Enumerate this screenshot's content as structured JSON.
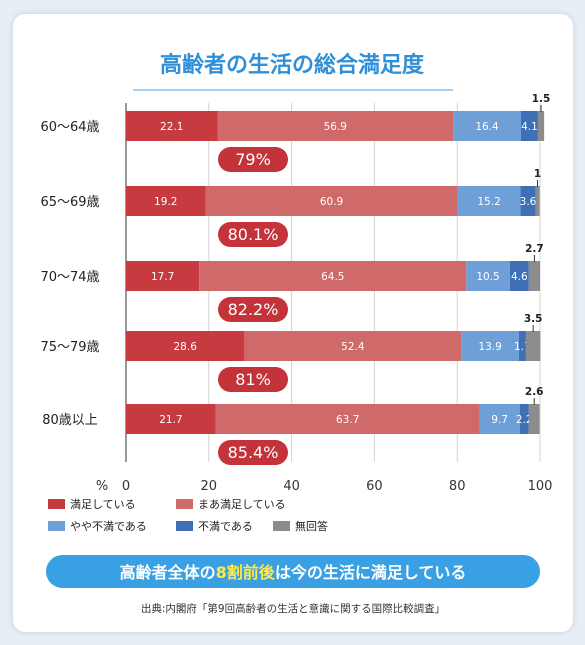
{
  "chart_data": {
    "type": "bar",
    "stacked": true,
    "orientation": "horizontal",
    "title": "高齢者の生活の総合満足度",
    "categories": [
      "60～64歳",
      "65～69歳",
      "70～74歳",
      "75～79歳",
      "80歳以上"
    ],
    "series": [
      {
        "name": "満足している",
        "color": "#c73a3f",
        "values": [
          22.1,
          19.2,
          17.7,
          28.6,
          21.7
        ]
      },
      {
        "name": "まあ満足している",
        "color": "#d06a6a",
        "values": [
          56.9,
          60.9,
          64.5,
          52.4,
          63.7
        ]
      },
      {
        "name": "やや不満である",
        "color": "#6e9fd6",
        "values": [
          16.4,
          15.2,
          10.5,
          13.9,
          9.7
        ]
      },
      {
        "name": "不満である",
        "color": "#3f6fb5",
        "values": [
          4.1,
          3.6,
          4.6,
          1.7,
          2.2
        ]
      },
      {
        "name": "無回答",
        "color": "#8c8c8c",
        "values": [
          1.5,
          1.0,
          2.7,
          3.5,
          2.6
        ]
      }
    ],
    "satisfied_totals": [
      "79%",
      "80.1%",
      "82.2%",
      "81%",
      "85.4%"
    ],
    "x_unit": "%",
    "xticks": [
      "0",
      "20",
      "40",
      "60",
      "80",
      "100"
    ],
    "xlim": [
      0,
      100
    ],
    "grid": true,
    "legend_position": "bottom"
  },
  "banner": {
    "before": "高齢者全体の",
    "highlight": "8割前後",
    "after": "は今の生活に満足している"
  },
  "source": "出典:内閣府「第9回高齢者の生活と意識に関する国際比較調査」",
  "colors": {
    "title": "#2f8fd8",
    "banner": "#3aa0e4",
    "highlight": "#ffe94a",
    "pill": "#c4323a"
  }
}
